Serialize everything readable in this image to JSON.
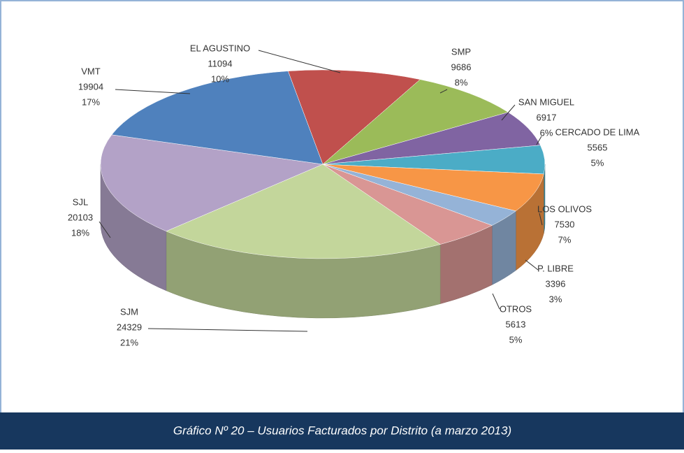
{
  "chart_data": {
    "type": "pie3d",
    "caption": "Gráfico Nº 20 – Usuarios Facturados por Distrito  (a marzo 2013)",
    "categories": [
      "EL AGUSTINO",
      "SMP",
      "SAN MIGUEL",
      "CERCADO DE LIMA",
      "LOS OLIVOS",
      "P. LIBRE",
      "OTROS",
      "SJM",
      "SJL",
      "VMT"
    ],
    "values": [
      11094,
      9686,
      6917,
      5565,
      7530,
      3396,
      5613,
      24329,
      20103,
      19904
    ],
    "percent_labels": [
      "10%",
      "8%",
      "6%",
      "5%",
      "7%",
      "3%",
      "5%",
      "21%",
      "18%",
      "17%"
    ],
    "colors": [
      "#c0504d",
      "#9bbb59",
      "#8064a2",
      "#4bacc6",
      "#f79646",
      "#95b3d7",
      "#d99694",
      "#c3d69b",
      "#b3a2c7",
      "#4f81bd"
    ]
  }
}
